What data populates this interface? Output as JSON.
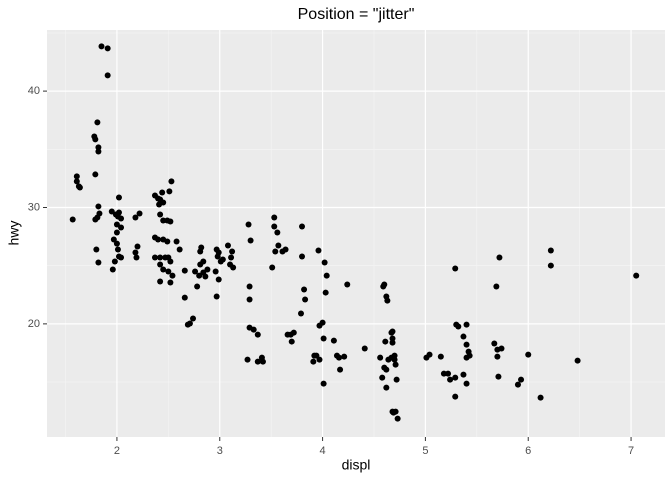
{
  "chart_data": {
    "type": "scatter",
    "title": "Position = \"jitter\"",
    "x_label": "displ",
    "y_label": "hwy",
    "xlim": [
      1.32,
      7.33
    ],
    "ylim": [
      10.28,
      45.25
    ],
    "xticks": [
      2,
      3,
      4,
      5,
      6,
      7
    ],
    "yticks": [
      20,
      30,
      40
    ],
    "grid": true,
    "color": "#000000",
    "x": [
      1.57,
      1.61,
      1.61,
      1.63,
      1.64,
      1.85,
      1.91,
      1.91,
      1.81,
      1.78,
      1.79,
      1.82,
      1.82,
      1.79,
      1.81,
      1.82,
      1.83,
      1.79,
      1.8,
      1.82,
      1.95,
      1.99,
      2.01,
      2.02,
      2.04,
      1.97,
      2.0,
      2.01,
      2.02,
      2.04,
      1.98,
      1.96,
      2.0,
      2.02,
      2.04,
      2.0,
      2.18,
      2.2,
      2.18,
      2.22,
      2.19,
      2.37,
      2.4,
      2.42,
      2.44,
      2.45,
      2.41,
      2.42,
      2.45,
      2.49,
      2.52,
      2.37,
      2.4,
      2.45,
      2.49,
      2.37,
      2.42,
      2.47,
      2.5,
      2.42,
      2.45,
      2.52,
      2.5,
      2.54,
      2.42,
      2.52,
      2.53,
      2.51,
      2.58,
      2.61,
      2.66,
      2.69,
      2.71,
      2.74,
      2.66,
      2.76,
      2.81,
      2.84,
      2.81,
      2.82,
      2.86,
      2.78,
      2.8,
      2.84,
      2.88,
      2.97,
      2.99,
      2.98,
      3.03,
      3.01,
      2.99,
      2.97,
      2.96,
      3.08,
      3.12,
      3.1,
      3.13,
      3.11,
      3.28,
      3.3,
      3.29,
      3.29,
      3.29,
      3.33,
      3.37,
      3.37,
      3.41,
      3.42,
      3.27,
      3.53,
      3.53,
      3.54,
      3.56,
      3.51,
      3.57,
      3.61,
      3.64,
      3.66,
      3.69,
      3.7,
      3.72,
      3.8,
      3.8,
      3.82,
      3.83,
      3.79,
      3.92,
      3.94,
      3.91,
      3.97,
      3.97,
      4.0,
      4.01,
      4.03,
      4.04,
      4.02,
      4.01,
      3.96,
      4.11,
      4.14,
      4.16,
      4.21,
      4.24,
      4.17,
      4.41,
      4.56,
      4.6,
      4.62,
      4.63,
      4.59,
      4.58,
      4.6,
      4.62,
      4.62,
      4.67,
      4.68,
      4.68,
      4.68,
      4.67,
      4.7,
      4.71,
      4.72,
      4.68,
      4.71,
      4.73,
      4.69,
      4.7,
      4.64,
      4.61,
      5.01,
      5.04,
      5.15,
      5.18,
      5.22,
      5.24,
      5.29,
      5.29,
      5.32,
      5.3,
      5.37,
      5.4,
      5.4,
      5.42,
      5.4,
      5.43,
      5.37,
      5.4,
      5.29,
      5.69,
      5.72,
      5.67,
      5.7,
      5.7,
      5.74,
      5.71,
      5.9,
      5.93,
      6.0,
      6.22,
      6.22,
      6.12,
      6.48,
      7.05
    ],
    "values": [
      28.97,
      32.67,
      32.24,
      31.81,
      31.72,
      43.84,
      43.67,
      41.35,
      37.31,
      36.1,
      35.85,
      35.16,
      34.81,
      32.84,
      29.14,
      30.09,
      29.48,
      28.97,
      26.39,
      25.27,
      29.66,
      29.4,
      29.23,
      29.57,
      29.05,
      27.25,
      26.9,
      26.39,
      25.79,
      25.7,
      25.36,
      24.67,
      28.54,
      30.86,
      28.28,
      27.85,
      29.14,
      26.65,
      26.13,
      29.48,
      25.7,
      31.03,
      30.77,
      30.69,
      31.29,
      30.43,
      30.26,
      29.4,
      28.88,
      28.88,
      28.8,
      27.42,
      27.25,
      27.25,
      27.08,
      25.7,
      25.7,
      25.7,
      25.7,
      25.1,
      24.67,
      25.36,
      24.5,
      24.15,
      23.64,
      23.55,
      32.24,
      31.38,
      27.08,
      26.39,
      24.58,
      19.94,
      20.03,
      20.46,
      22.26,
      24.5,
      25.1,
      25.36,
      26.22,
      26.56,
      24.07,
      23.21,
      24.15,
      24.41,
      24.67,
      26.39,
      26.13,
      25.79,
      25.53,
      25.36,
      23.81,
      22.35,
      24.5,
      26.73,
      26.22,
      25.1,
      24.84,
      25.7,
      28.54,
      27.16,
      23.21,
      22.09,
      19.68,
      19.51,
      19.08,
      16.76,
      17.1,
      16.76,
      16.93,
      29.14,
      28.37,
      26.22,
      27.85,
      24.84,
      26.73,
      26.22,
      26.39,
      19.08,
      19.08,
      18.48,
      19.25,
      28.37,
      25.79,
      22.95,
      22.09,
      20.89,
      17.27,
      17.27,
      16.76,
      16.93,
      19.85,
      20.11,
      18.74,
      22.69,
      24.15,
      25.27,
      14.87,
      26.3,
      18.56,
      17.27,
      17.1,
      17.19,
      23.38,
      16.07,
      17.88,
      17.1,
      23.38,
      22.35,
      22.0,
      23.21,
      15.38,
      16.24,
      16.07,
      14.52,
      19.25,
      18.74,
      19.34,
      18.39,
      17.1,
      16.93,
      16.5,
      15.21,
      12.46,
      12.46,
      11.86,
      12.37,
      17.27,
      16.93,
      18.48,
      17.1,
      17.36,
      17.19,
      15.73,
      15.73,
      15.21,
      15.38,
      13.75,
      19.77,
      19.94,
      18.91,
      19.94,
      18.22,
      17.62,
      17.1,
      17.27,
      15.64,
      14.87,
      24.76,
      23.21,
      25.7,
      18.31,
      17.79,
      17.19,
      17.88,
      15.47,
      14.78,
      15.21,
      17.36,
      26.3,
      25.01,
      13.66,
      16.84,
      24.15
    ]
  }
}
